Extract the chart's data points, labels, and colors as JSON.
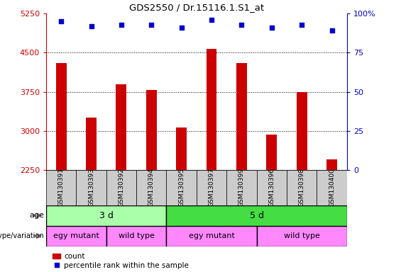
{
  "title": "GDS2550 / Dr.15116.1.S1_at",
  "samples": [
    "GSM130391",
    "GSM130393",
    "GSM130392",
    "GSM130394",
    "GSM130395",
    "GSM130397",
    "GSM130399",
    "GSM130396",
    "GSM130398",
    "GSM130400"
  ],
  "counts": [
    4300,
    3250,
    3900,
    3780,
    3070,
    4580,
    4300,
    2930,
    3750,
    2450
  ],
  "percentile_ranks": [
    95,
    92,
    93,
    93,
    91,
    96,
    93,
    91,
    93,
    89
  ],
  "y_min": 2250,
  "y_max": 5250,
  "y_ticks": [
    2250,
    3000,
    3750,
    4500,
    5250
  ],
  "right_y_ticks": [
    0,
    25,
    50,
    75,
    100
  ],
  "age_groups": [
    {
      "label": "3 d",
      "start": 0,
      "end": 4
    },
    {
      "label": "5 d",
      "start": 4,
      "end": 10
    }
  ],
  "genotype_groups": [
    {
      "label": "egy mutant",
      "start": 0,
      "end": 2
    },
    {
      "label": "wild type",
      "start": 2,
      "end": 4
    },
    {
      "label": "egy mutant",
      "start": 4,
      "end": 7
    },
    {
      "label": "wild type",
      "start": 7,
      "end": 10
    }
  ],
  "bar_color": "#CC0000",
  "dot_color": "#0000CC",
  "age_color_light": "#AAFFAA",
  "age_color_dark": "#44DD44",
  "genotype_color": "#FF88FF",
  "tick_label_color": "#CC0000",
  "right_tick_color": "#0000CC",
  "grid_color": "#000000",
  "sample_box_color": "#CCCCCC",
  "background_color": "#ffffff",
  "bar_width": 0.35
}
